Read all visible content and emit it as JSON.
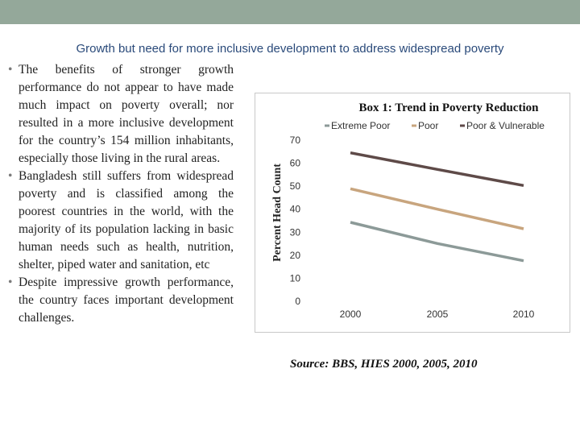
{
  "slide_title": "Growth but need for more inclusive development to address widespread poverty",
  "bullets": [
    "The benefits of stronger growth performance do not appear to have made much impact on poverty overall; nor resulted in a more inclusive development for the country’s 154 million inhabitants, especially those living in the rural areas.",
    "Bangladesh still suffers from widespread poverty and is classified among the poorest countries in the world, with the majority of its population lacking in basic human needs such as health, nutrition, shelter, piped water and sanitation, etc",
    "Despite impressive growth performance, the country faces important development challenges."
  ],
  "source": "Source: BBS, HIES 2000, 2005, 2010",
  "chart_data": {
    "type": "line",
    "title": "Box 1: Trend in Poverty Reduction",
    "ylabel": "Percent Head Count",
    "xlabel": "",
    "categories": [
      "2000",
      "2005",
      "2010"
    ],
    "ylim": [
      0,
      70
    ],
    "yticks": [
      0,
      10,
      20,
      30,
      40,
      50,
      60,
      70
    ],
    "grid": false,
    "legend_position": "top",
    "series": [
      {
        "name": "Extreme Poor",
        "values": [
          34.3,
          25.1,
          17.6
        ],
        "color": "#8c9a98"
      },
      {
        "name": "Poor",
        "values": [
          48.9,
          40.0,
          31.5
        ],
        "color": "#c8a57e"
      },
      {
        "name": "Poor & Vulnerable",
        "values": [
          64.5,
          57.3,
          50.3
        ],
        "color": "#5e4a48"
      }
    ]
  }
}
